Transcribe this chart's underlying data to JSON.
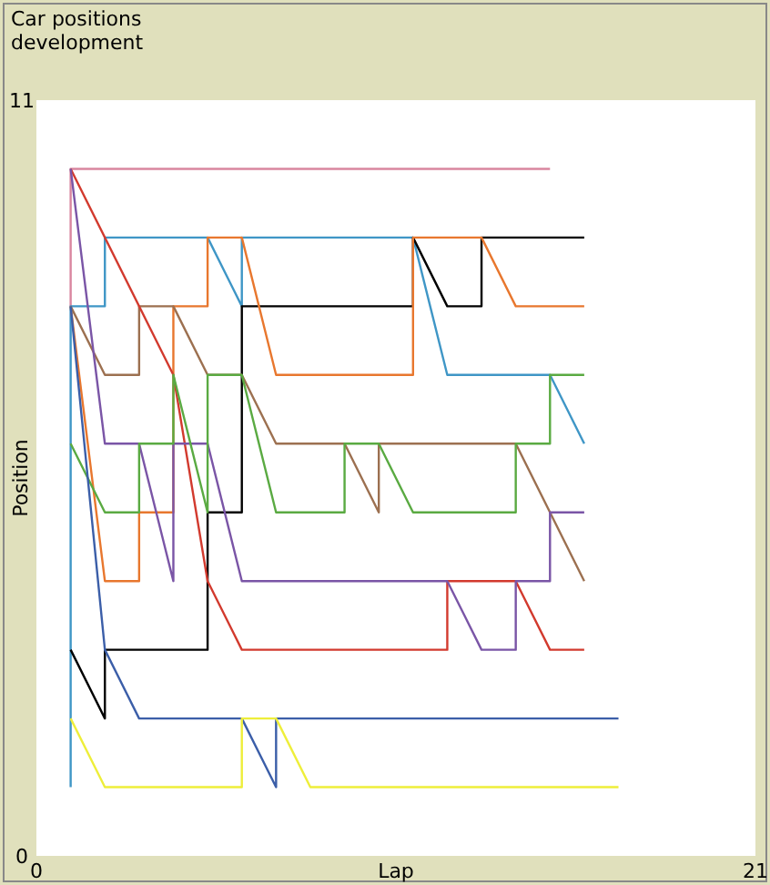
{
  "chart_data": {
    "type": "line",
    "title": "Car positions development",
    "xlabel": "Lap",
    "ylabel": "Position",
    "xlim": [
      0,
      21
    ],
    "ylim": [
      0,
      11
    ],
    "xticks": [
      0,
      21
    ],
    "yticks": [
      0,
      11
    ],
    "grid": false,
    "marker": "none",
    "line_style": "solid",
    "series": [
      {
        "color": "#d9869f",
        "x": [
          1,
          1,
          15
        ],
        "values": [
          8,
          10,
          10
        ]
      },
      {
        "color": "#3f96c6",
        "x": [
          1,
          1,
          2,
          2,
          5,
          6,
          6,
          11,
          12,
          15,
          16
        ],
        "values": [
          1,
          8,
          8,
          9,
          9,
          8,
          9,
          9,
          7,
          7,
          6
        ]
      },
      {
        "color": "#000000",
        "x": [
          1,
          2,
          2,
          5,
          5,
          6,
          6,
          11,
          11,
          12,
          13,
          13,
          16
        ],
        "values": [
          3,
          2,
          3,
          3,
          5,
          5,
          8,
          8,
          9,
          8,
          8,
          9,
          9
        ]
      },
      {
        "color": "#e8772e",
        "x": [
          1,
          2,
          3,
          3,
          4,
          4,
          5,
          5,
          6,
          7,
          11,
          11,
          13,
          14,
          16
        ],
        "values": [
          8,
          4,
          4,
          5,
          5,
          8,
          8,
          9,
          9,
          7,
          7,
          9,
          9,
          8,
          8
        ]
      },
      {
        "color": "#9c7050",
        "x": [
          1,
          2,
          3,
          3,
          4,
          5,
          6,
          7,
          9,
          10,
          10,
          14,
          16
        ],
        "values": [
          8,
          7,
          7,
          8,
          8,
          7,
          7,
          6,
          6,
          5,
          6,
          6,
          4
        ]
      },
      {
        "color": "#d23a2e",
        "x": [
          1,
          4,
          5,
          6,
          12,
          12,
          14,
          15,
          16
        ],
        "values": [
          10,
          7,
          4,
          3,
          3,
          4,
          4,
          3,
          3
        ]
      },
      {
        "color": "#7a55a6",
        "x": [
          1,
          2,
          3,
          4,
          4,
          5,
          6,
          12,
          13,
          14,
          14,
          15,
          15,
          16
        ],
        "values": [
          10,
          6,
          6,
          4,
          6,
          6,
          4,
          4,
          3,
          3,
          4,
          4,
          5,
          5
        ]
      },
      {
        "color": "#5aaa42",
        "x": [
          1,
          2,
          3,
          3,
          4,
          4,
          5,
          5,
          6,
          7,
          9,
          9,
          10,
          11,
          14,
          14,
          15,
          15,
          16
        ],
        "values": [
          6,
          5,
          5,
          6,
          6,
          7,
          5,
          7,
          7,
          5,
          5,
          6,
          6,
          5,
          5,
          6,
          6,
          7,
          7
        ]
      },
      {
        "color": "#3b5ea8",
        "x": [
          1,
          2,
          3,
          6,
          7,
          7,
          17
        ],
        "values": [
          8,
          3,
          2,
          2,
          1,
          2,
          2
        ]
      },
      {
        "color": "#eeee3a",
        "x": [
          1,
          2,
          6,
          6,
          7,
          8,
          17
        ],
        "values": [
          2,
          1,
          1,
          2,
          2,
          1,
          1
        ]
      }
    ]
  }
}
